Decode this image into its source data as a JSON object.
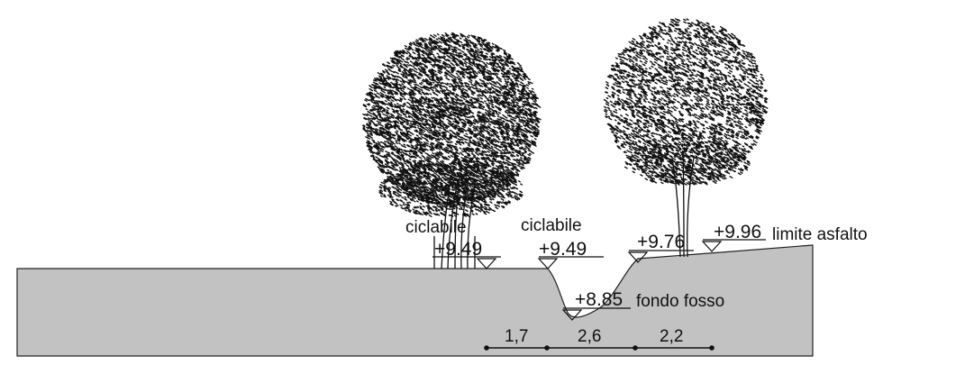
{
  "labels": {
    "ciclabile_left": "ciclabile",
    "ciclabile_right": "ciclabile",
    "fondo_fosso": "fondo fosso",
    "limite_asfalto": "limite asfalto"
  },
  "elevations": {
    "left_path": "+9.49",
    "right_path": "+9.49",
    "ditch_bottom": "+8.85",
    "ditch_edge": "+9.76",
    "asphalt_limit": "+9.96"
  },
  "dimensions": [
    "1,7",
    "2,6",
    "2,2"
  ],
  "colors": {
    "ground_fill": "#c2c2c2",
    "ink": "#111111"
  }
}
